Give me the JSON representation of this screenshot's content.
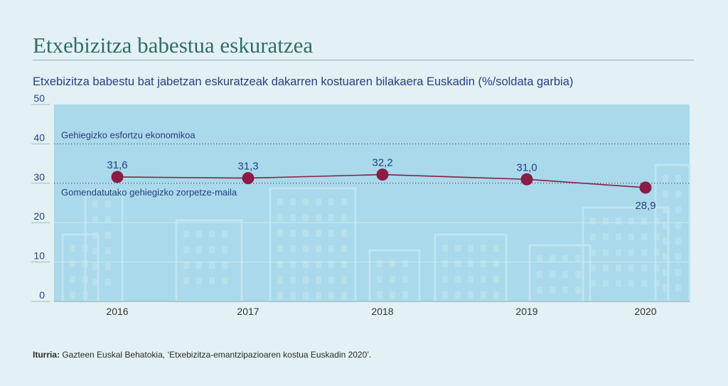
{
  "page": {
    "title": "Etxebizitza babestua eskuratzea",
    "subtitle": "Etxebizitza babestu bat jabetzan eskuratzeak dakarren kostuaren bilakaera Euskadin (%/soldata garbia)",
    "source_label": "Iturria:",
    "source_text": " Gazteen Euskal Behatokia, ‘Etxebizitza-emantzipazioaren kostua Euskadin 2020’."
  },
  "colors": {
    "background": "#e3f1f4",
    "plot_area": "#a9d9ea",
    "title": "#2f6d6a",
    "text": "#263f83",
    "line": "#8b1c45"
  },
  "chart_data": {
    "type": "line",
    "categories": [
      "2016",
      "2017",
      "2018",
      "2019",
      "2020"
    ],
    "series": [
      {
        "values": [
          31.6,
          31.3,
          32.2,
          31.0,
          28.9
        ]
      }
    ],
    "data_labels": [
      "31,6",
      "31,3",
      "32,2",
      "31,0",
      "28,9"
    ],
    "ylim": [
      0,
      50
    ],
    "yticks": [
      0,
      10,
      20,
      30,
      40,
      50
    ],
    "ytick_labels": [
      "0",
      "10",
      "20",
      "30",
      "40",
      "50"
    ],
    "grid": true,
    "reference_lines": [
      {
        "value": 40,
        "label": "Gehiegizko esfortzu ekonomikoa"
      },
      {
        "value": 30,
        "label": "Gomendatutako gehiegizko zorpetze-maila"
      }
    ]
  }
}
